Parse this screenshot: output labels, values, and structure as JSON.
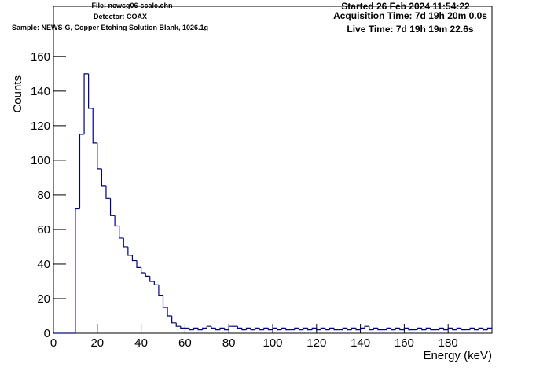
{
  "chart_data": {
    "type": "histogram",
    "header_left": [
      "File: newsg06-scale.chn",
      "Detector: COAX",
      "Sample: NEWS-G, Copper Etching Solution Blank, 1026.1g"
    ],
    "header_right": [
      "Started 26 Feb 2024 11:54:22",
      "Acquisition Time: 7d 19h 20m 0.0s",
      "Live Time: 7d 19h 19m 22.6s"
    ],
    "x_label": "Energy (keV)",
    "y_label": "Counts",
    "color": "#000080",
    "bins": [
      0,
      2,
      4,
      6,
      8,
      10,
      12,
      14,
      16,
      18,
      20,
      22,
      24,
      26,
      28,
      30,
      32,
      34,
      36,
      38,
      40,
      42,
      44,
      46,
      48,
      50,
      52,
      54,
      56,
      58,
      60,
      62,
      64,
      66,
      68,
      70,
      72,
      74,
      76,
      78,
      80,
      82,
      84,
      86,
      88,
      90,
      92,
      94,
      96,
      98,
      100,
      102,
      104,
      106,
      108,
      110,
      112,
      114,
      116,
      118,
      120,
      122,
      124,
      126,
      128,
      130,
      132,
      134,
      136,
      138,
      140,
      142,
      144,
      146,
      148,
      150,
      152,
      154,
      156,
      158,
      160,
      162,
      164,
      166,
      168,
      170,
      172,
      174,
      176,
      178,
      180,
      182,
      184,
      186,
      188,
      190,
      192,
      194,
      196,
      198,
      200
    ],
    "values": [
      0,
      0,
      0,
      0,
      0,
      72,
      115,
      150,
      130,
      110,
      95,
      85,
      78,
      68,
      62,
      55,
      50,
      45,
      42,
      38,
      35,
      33,
      30,
      28,
      22,
      15,
      10,
      6,
      4,
      3,
      3,
      2,
      3,
      2,
      3,
      4,
      3,
      2,
      3,
      2,
      4,
      4,
      3,
      2,
      3,
      2,
      3,
      2,
      3,
      2,
      3,
      2,
      3,
      2,
      2,
      3,
      2,
      3,
      2,
      3,
      2,
      3,
      2,
      3,
      2,
      2,
      3,
      2,
      3,
      2,
      3,
      4,
      2,
      3,
      2,
      2,
      3,
      2,
      3,
      2,
      3,
      2,
      2,
      3,
      2,
      3,
      2,
      2,
      3,
      2,
      3,
      2,
      3,
      2,
      2,
      3,
      2,
      3,
      2,
      3
    ],
    "xlim": [
      0,
      200
    ],
    "ylim": [
      0,
      189
    ],
    "xticks": [
      0,
      20,
      40,
      60,
      80,
      100,
      120,
      140,
      160,
      180
    ],
    "yticks": [
      0,
      20,
      40,
      60,
      80,
      100,
      120,
      140,
      160
    ]
  }
}
